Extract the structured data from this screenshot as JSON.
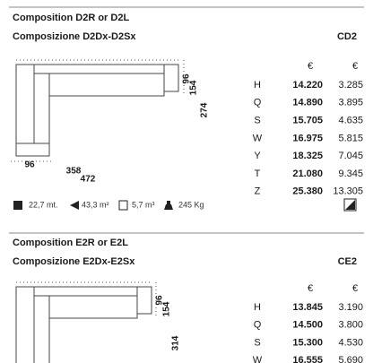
{
  "sections": [
    {
      "title": "Composition D2R or D2L",
      "subtitle": "Composizione D2Dx-D2Sx",
      "code": "CD2",
      "dimensions": [
        "96",
        "154",
        "274",
        "96",
        "358",
        "472"
      ],
      "currency": [
        "€",
        "€"
      ],
      "prices": [
        [
          "H",
          "14.220",
          "3.285"
        ],
        [
          "Q",
          "14.890",
          "3.895"
        ],
        [
          "S",
          "15.705",
          "4.635"
        ],
        [
          "W",
          "16.975",
          "5.815"
        ],
        [
          "Y",
          "18.325",
          "7.045"
        ],
        [
          "T",
          "21.080",
          "9.345"
        ],
        [
          "Z",
          "25.380",
          "13.305"
        ]
      ],
      "specs": [
        "22,7 mt.",
        "43,3 m²",
        "5,7 m³",
        "245 Kg"
      ]
    },
    {
      "title": "Composition E2R or E2L",
      "subtitle": "Composizione E2Dx-E2Sx",
      "code": "CE2",
      "dimensions": [
        "96",
        "154",
        "314"
      ],
      "currency": [
        "€",
        "€"
      ],
      "prices": [
        [
          "H",
          "13.845",
          "3.190"
        ],
        [
          "Q",
          "14.500",
          "3.800"
        ],
        [
          "S",
          "15.300",
          "4.530"
        ],
        [
          "W",
          "16.555",
          "5.690"
        ]
      ]
    }
  ]
}
